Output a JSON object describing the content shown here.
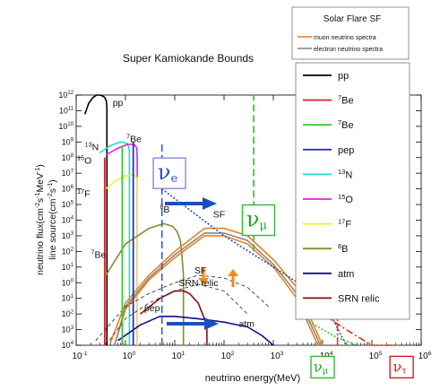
{
  "chart_data": {
    "type": "line",
    "title": "Super Kamiokande Bounds",
    "xlabel": "neutrino energy(MeV)",
    "ylabel_line1": "neutrino flux(cm",
    "ylabel_sup1": "-2",
    "ylabel_mid": "s",
    "ylabel_sup2": "-1",
    "ylabel_end": "MeV",
    "ylabel_sup3": "-1",
    "ylabel_close": ")",
    "ylabel_line2": "line source(cm",
    "ylabel2_sup1": "-2",
    "ylabel2_mid": "s",
    "ylabel2_sup2": "-1",
    "ylabel2_close": ")",
    "x_scale": "log",
    "y_scale": "log",
    "xlim": [
      0.1,
      1000000
    ],
    "ylim": [
      0.0001,
      1000000000000
    ],
    "x_ticks": [
      {
        "b": "10",
        "e": "-1",
        "v": 0.1
      },
      {
        "b": "10",
        "e": "0",
        "v": 1
      },
      {
        "b": "10",
        "e": "1",
        "v": 10
      },
      {
        "b": "10",
        "e": "2",
        "v": 100
      },
      {
        "b": "10",
        "e": "3",
        "v": 1000
      },
      {
        "b": "10",
        "e": "4",
        "v": 10000
      },
      {
        "b": "10",
        "e": "5",
        "v": 100000
      },
      {
        "b": "10",
        "e": "6",
        "v": 1000000
      }
    ],
    "y_ticks": [
      {
        "b": "10",
        "e": "4",
        "v": 0.0001
      },
      {
        "b": "10",
        "e": "3",
        "v": 0.001
      },
      {
        "b": "10",
        "e": "2",
        "v": 0.01
      },
      {
        "b": "10",
        "e": "1",
        "v": 0.1
      },
      {
        "b": "10",
        "e": "0",
        "v": 1
      },
      {
        "b": "10",
        "e": "1",
        "v": 10
      },
      {
        "b": "10",
        "e": "2",
        "v": 100
      },
      {
        "b": "10",
        "e": "3",
        "v": 1000
      },
      {
        "b": "10",
        "e": "4",
        "v": 10000
      },
      {
        "b": "10",
        "e": "5",
        "v": 100000
      },
      {
        "b": "10",
        "e": "6",
        "v": 1000000
      },
      {
        "b": "10",
        "e": "7",
        "v": 10000000
      },
      {
        "b": "10",
        "e": "8",
        "v": 100000000
      },
      {
        "b": "10",
        "e": "9",
        "v": 1000000000
      },
      {
        "b": "10",
        "e": "10",
        "v": 10000000000
      },
      {
        "b": "10",
        "e": "11",
        "v": 100000000000
      },
      {
        "b": "10",
        "e": "12",
        "v": 1000000000000
      }
    ],
    "legend": {
      "position": "right",
      "entries": [
        {
          "label": "pp",
          "sup": "",
          "color": "#000000"
        },
        {
          "label": "Be",
          "sup": "7",
          "color": "#e02020"
        },
        {
          "label": "Be",
          "sup": "7",
          "color": "#33cc33"
        },
        {
          "label": "pep",
          "sup": "",
          "color": "#3030c0"
        },
        {
          "label": "N",
          "sup": "13",
          "color": "#22d8d8"
        },
        {
          "label": "O",
          "sup": "15",
          "color": "#e020e0"
        },
        {
          "label": "F",
          "sup": "17",
          "color": "#f0f020"
        },
        {
          "label": "B",
          "sup": "8",
          "color": "#8a8a2a"
        },
        {
          "label": "atm",
          "sup": "",
          "color": "#10108a"
        },
        {
          "label": "SRN relic",
          "sup": "",
          "color": "#8a1010"
        }
      ]
    },
    "legend2": {
      "title": "Solar Flare  SF",
      "entries": [
        {
          "label": "muon neutrino spectra",
          "color": "#f08020"
        },
        {
          "label": "electron neutrino  spectra",
          "color": "#888888"
        }
      ]
    },
    "series": [
      {
        "name": "pp",
        "color": "#000000",
        "x": [
          0.15,
          0.18,
          0.22,
          0.26,
          0.3,
          0.34,
          0.38,
          0.41,
          0.42,
          0.42
        ],
        "y": [
          60000000000,
          300000000000,
          700000000000,
          1000000000000,
          1000000000000,
          900000000000,
          700000000000,
          400000000000,
          150000000000,
          0.0001
        ]
      },
      {
        "name": "13N",
        "color": "#22d8d8",
        "x": [
          0.3,
          0.5,
          0.8,
          1.1,
          1.2,
          1.2
        ],
        "y": [
          200000000,
          600000000,
          1000000000,
          800000000,
          300000000,
          0.0001
        ]
      },
      {
        "name": "15O",
        "color": "#e020e0",
        "x": [
          0.4,
          0.7,
          1.1,
          1.5,
          1.7,
          1.73,
          1.73
        ],
        "y": [
          150000000,
          400000000,
          700000000,
          700000000,
          400000000,
          100000000,
          0.0001
        ]
      },
      {
        "name": "17F",
        "color": "#f0f020",
        "x": [
          0.35,
          0.6,
          1.0,
          1.5,
          1.74,
          1.74
        ],
        "y": [
          700000,
          3000000,
          7000000,
          8000000,
          5000000,
          0.0001
        ]
      },
      {
        "name": "8B",
        "color": "#8a8a2a",
        "x": [
          0.4,
          1,
          3,
          6,
          9,
          11,
          13,
          14,
          15,
          15
        ],
        "y": [
          3,
          300,
          3000,
          6000,
          4000,
          2000,
          500,
          60,
          3,
          0.0001
        ]
      },
      {
        "name": "muon neutrino spectra (outer)",
        "color": "#f08020",
        "x": [
          0.5,
          1,
          3,
          10,
          40,
          100,
          300,
          1000,
          3000,
          10000
        ],
        "y": [
          0.00015,
          0.05,
          3,
          100,
          3000,
          3000,
          1000,
          30,
          0.5,
          0.0001
        ]
      },
      {
        "name": "muon neutrino spectra (inner)",
        "color": "#f08020",
        "x": [
          0.6,
          1,
          3,
          10,
          40,
          100,
          300,
          1000,
          3000,
          8000
        ],
        "y": [
          0.0001,
          0.02,
          1.5,
          40,
          1000,
          1000,
          300,
          10,
          0.1,
          0.0001
        ]
      },
      {
        "name": "electron neutrino spectra",
        "color": "#888888",
        "x": [
          0.6,
          1,
          3,
          10,
          40,
          100,
          300,
          1000,
          3000,
          9000
        ],
        "y": [
          0.0001,
          0.03,
          2,
          60,
          1500,
          1500,
          500,
          15,
          0.2,
          0.0001
        ]
      },
      {
        "name": "SRN relic",
        "color": "#8a1010",
        "x": [
          2,
          5,
          10,
          15,
          20,
          30,
          40,
          45,
          45
        ],
        "y": [
          0.01,
          0.1,
          0.3,
          0.3,
          0.2,
          0.05,
          0.005,
          0.001,
          0.0001
        ]
      },
      {
        "name": "atm",
        "color": "#10108a",
        "x": [
          0.7,
          2,
          5,
          10,
          30,
          100,
          300,
          600,
          1000
        ],
        "y": [
          0.0002,
          0.002,
          0.007,
          0.007,
          0.005,
          0.003,
          0.0015,
          0.0004,
          0.0001
        ]
      },
      {
        "name": "SF dashed 1",
        "color": "#222222",
        "dash": "4,3",
        "width": 0.8,
        "x": [
          0.25,
          1,
          3,
          10,
          30,
          100,
          300,
          800
        ],
        "y": [
          0.0002,
          0.03,
          0.2,
          1,
          3,
          2,
          0.5,
          0.03
        ]
      },
      {
        "name": "SF dashed 2",
        "color": "#222222",
        "dash": "4,3",
        "width": 0.8,
        "x": [
          0.4,
          1,
          3,
          10,
          30,
          100,
          300
        ],
        "y": [
          0.0001,
          0.005,
          0.05,
          0.3,
          0.8,
          0.3,
          0.01
        ]
      }
    ],
    "vlines": [
      {
        "name": "7Be line 1",
        "color": "#e02020",
        "x": 0.38,
        "ymin": 0.0001,
        "ymax": 100000000
      },
      {
        "name": "7Be line 2",
        "color": "#33cc33",
        "x": 0.86,
        "ymin": 0.0001,
        "ymax": 600000000
      },
      {
        "name": "pep line",
        "color": "#3030c0",
        "x": 1.44,
        "ymin": 0.0001,
        "ymax": 1000000000
      }
    ],
    "bounds": [
      {
        "name": "nu_e bound",
        "color": "#3060c0",
        "dash": "8,4",
        "x": [
          5.5,
          5.5
        ],
        "y": [
          0.0001,
          1000000000
        ]
      },
      {
        "name": "nu_e dotted",
        "color": "#2050b0",
        "dash": "2,2",
        "x": [
          5.5,
          100,
          10000,
          30000
        ],
        "y": [
          1000000,
          1000,
          0.1,
          0.0001
        ]
      },
      {
        "name": "nu_mu bound",
        "color": "#33bb33",
        "dash": "8,4",
        "x": [
          400,
          400
        ],
        "y": [
          100,
          1000000000000
        ]
      },
      {
        "name": "nu_mu dotted",
        "color": "#33bb33",
        "dash": "2,2",
        "x": [
          3000,
          10000,
          20000,
          50000
        ],
        "y": [
          0.01,
          0.001,
          0.0003,
          0.0001
        ]
      },
      {
        "name": "nu_tau bound",
        "color": "#e03020",
        "dash": "8,3,2,3",
        "x": [
          20000,
          20000
        ],
        "y": [
          0.0001,
          0.3
        ]
      },
      {
        "name": "nu_tau dashdot",
        "color": "#e03020",
        "dash": "8,3,2,3",
        "x": [
          10000,
          30000,
          100000,
          300000
        ],
        "y": [
          0.01,
          0.001,
          0.0001,
          2e-05
        ]
      }
    ],
    "annotations": [
      {
        "name": "pp-label",
        "text": "pp",
        "sup": "",
        "x": 0.55,
        "y": 200000000000
      },
      {
        "name": "7be-label-top",
        "text": "Be",
        "sup": "7",
        "x": 1.05,
        "y": 1000000000
      },
      {
        "name": "13n-label",
        "text": "N",
        "sup": "13",
        "x": 0.15,
        "y": 300000000
      },
      {
        "name": "15o-label",
        "text": "O",
        "sup": "15",
        "x": 0.105,
        "y": 40000000
      },
      {
        "name": "17f-label",
        "text": "F",
        "sup": "17",
        "x": 0.105,
        "y": 300000
      },
      {
        "name": "8b-label",
        "text": "B",
        "sup": "8",
        "x": 5,
        "y": 30000
      },
      {
        "name": "7be-label-low",
        "text": "Be",
        "sup": "7",
        "x": 0.2,
        "y": 40
      },
      {
        "name": "sf-label-top",
        "text": "SF",
        "sup": "",
        "x": 60,
        "y": 15000
      },
      {
        "name": "sf-label-mid",
        "text": "SF",
        "sup": "",
        "x": 25,
        "y": 4
      },
      {
        "name": "srn-label",
        "text": "SRN relic",
        "sup": "",
        "x": 12,
        "y": 0.6
      },
      {
        "name": "pep-label",
        "text": "pep",
        "sup": "",
        "x": 2.4,
        "y": 0.015
      },
      {
        "name": "atm-label",
        "text": "atm",
        "sup": "",
        "x": 200,
        "y": 0.0015
      }
    ],
    "nu_labels": [
      {
        "name": "nu-e-box",
        "sub": "e",
        "color": "#3050c0",
        "box": "#8888dd",
        "x": 7.8,
        "y": 10000000
      },
      {
        "name": "nu-mu-box",
        "sub": "μ",
        "color": "#22aa22",
        "box": "#33bb33",
        "x": 500,
        "y": 10000
      },
      {
        "name": "nu-mu-box-bottom",
        "sub": "μ",
        "color": "#22aa22",
        "box": "#33bb33",
        "x": 10000,
        "y": 4e-06
      },
      {
        "name": "nu-tau-box",
        "sub": "τ",
        "color": "#cc2020",
        "box": "#cc2020",
        "x": 400000,
        "y": 4e-06
      }
    ]
  }
}
